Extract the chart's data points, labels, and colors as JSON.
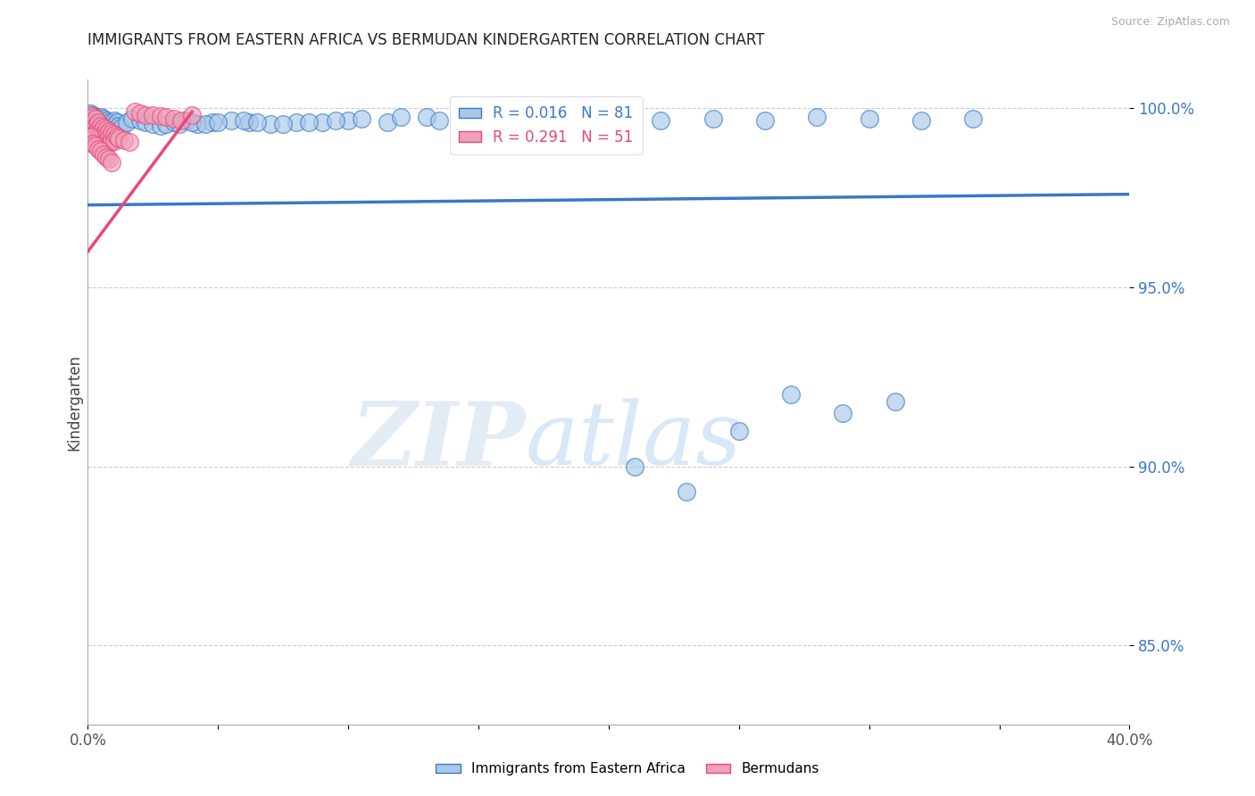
{
  "title": "IMMIGRANTS FROM EASTERN AFRICA VS BERMUDAN KINDERGARTEN CORRELATION CHART",
  "source_text": "Source: ZipAtlas.com",
  "ylabel": "Kindergarten",
  "xlim": [
    0.0,
    0.4
  ],
  "ylim": [
    0.828,
    1.008
  ],
  "yticks": [
    0.85,
    0.9,
    0.95,
    1.0
  ],
  "yticklabels": [
    "85.0%",
    "90.0%",
    "95.0%",
    "100.0%"
  ],
  "blue_R": 0.016,
  "blue_N": 81,
  "pink_R": 0.291,
  "pink_N": 51,
  "blue_color": "#A8C8E8",
  "pink_color": "#F0A0B8",
  "blue_line_color": "#3878C8",
  "pink_line_color": "#E84878",
  "legend_label_blue": "Immigrants from Eastern Africa",
  "legend_label_pink": "Bermudans",
  "watermark_zip": "ZIP",
  "watermark_atlas": "atlas",
  "blue_x": [
    0.001,
    0.001,
    0.001,
    0.002,
    0.002,
    0.002,
    0.002,
    0.003,
    0.003,
    0.003,
    0.004,
    0.004,
    0.004,
    0.005,
    0.005,
    0.005,
    0.006,
    0.006,
    0.006,
    0.007,
    0.007,
    0.008,
    0.008,
    0.009,
    0.009,
    0.01,
    0.01,
    0.011,
    0.012,
    0.013,
    0.015,
    0.017,
    0.02,
    0.022,
    0.025,
    0.028,
    0.03,
    0.033,
    0.038,
    0.042,
    0.048,
    0.055,
    0.062,
    0.07,
    0.08,
    0.09,
    0.1,
    0.115,
    0.13,
    0.145,
    0.16,
    0.18,
    0.2,
    0.22,
    0.24,
    0.26,
    0.28,
    0.3,
    0.32,
    0.34,
    0.035,
    0.04,
    0.045,
    0.05,
    0.06,
    0.065,
    0.075,
    0.085,
    0.095,
    0.105,
    0.12,
    0.135,
    0.155,
    0.17,
    0.19,
    0.21,
    0.23,
    0.25,
    0.27,
    0.29,
    0.31
  ],
  "blue_y": [
    0.9985,
    0.997,
    0.996,
    0.998,
    0.9965,
    0.9955,
    0.994,
    0.9975,
    0.996,
    0.9945,
    0.997,
    0.9955,
    0.994,
    0.9975,
    0.996,
    0.9945,
    0.997,
    0.995,
    0.9935,
    0.9965,
    0.995,
    0.996,
    0.9945,
    0.9955,
    0.994,
    0.9965,
    0.995,
    0.996,
    0.995,
    0.9945,
    0.996,
    0.997,
    0.9965,
    0.996,
    0.9955,
    0.995,
    0.9955,
    0.996,
    0.9965,
    0.9955,
    0.996,
    0.9965,
    0.996,
    0.9955,
    0.996,
    0.996,
    0.9965,
    0.996,
    0.9975,
    0.9965,
    0.996,
    0.997,
    0.996,
    0.9965,
    0.997,
    0.9965,
    0.9975,
    0.997,
    0.9965,
    0.997,
    0.9955,
    0.996,
    0.9955,
    0.996,
    0.9965,
    0.996,
    0.9955,
    0.996,
    0.9965,
    0.997,
    0.9975,
    0.9965,
    0.996,
    0.9965,
    0.997,
    0.9,
    0.893,
    0.91,
    0.92,
    0.915,
    0.918
  ],
  "pink_x": [
    0.001,
    0.001,
    0.001,
    0.002,
    0.002,
    0.002,
    0.002,
    0.003,
    0.003,
    0.003,
    0.004,
    0.004,
    0.004,
    0.005,
    0.005,
    0.005,
    0.006,
    0.006,
    0.006,
    0.007,
    0.007,
    0.007,
    0.008,
    0.008,
    0.008,
    0.009,
    0.009,
    0.01,
    0.01,
    0.011,
    0.012,
    0.014,
    0.016,
    0.018,
    0.02,
    0.022,
    0.025,
    0.028,
    0.03,
    0.033,
    0.036,
    0.04,
    0.001,
    0.002,
    0.003,
    0.004,
    0.005,
    0.006,
    0.007,
    0.008,
    0.009
  ],
  "pink_y": [
    0.998,
    0.996,
    0.994,
    0.9975,
    0.9955,
    0.9935,
    0.992,
    0.997,
    0.995,
    0.993,
    0.996,
    0.994,
    0.992,
    0.995,
    0.9935,
    0.9915,
    0.9945,
    0.9928,
    0.991,
    0.994,
    0.9925,
    0.9905,
    0.9935,
    0.9918,
    0.99,
    0.993,
    0.9912,
    0.9925,
    0.9908,
    0.992,
    0.9915,
    0.991,
    0.9905,
    0.999,
    0.9985,
    0.9982,
    0.998,
    0.9978,
    0.9975,
    0.997,
    0.9965,
    0.998,
    0.992,
    0.99,
    0.9895,
    0.9885,
    0.988,
    0.987,
    0.9865,
    0.986,
    0.985
  ],
  "blue_trend_x": [
    0.0,
    0.4
  ],
  "blue_trend_y": [
    0.973,
    0.976
  ],
  "pink_trend_x": [
    0.0,
    0.04
  ],
  "pink_trend_y": [
    0.96,
    0.999
  ]
}
